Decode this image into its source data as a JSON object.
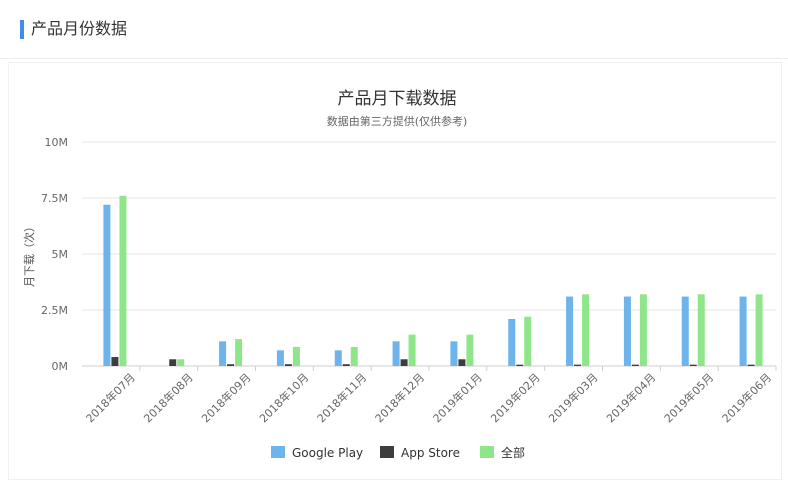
{
  "section": {
    "title": "产品月份数据"
  },
  "colors": {
    "accent": "#3d8eea",
    "google_play": "#6eb3ea",
    "app_store": "#3d3d3f",
    "all": "#8fe68a",
    "grid": "#e6e6e6"
  },
  "chart_data": {
    "type": "bar",
    "title": "产品月下载数据",
    "subtitle": "数据由第三方提供(仅供参考)",
    "xlabel": "",
    "ylabel": "月下载（次）",
    "ylim": [
      0,
      10000000
    ],
    "yticks": [
      {
        "value": 0,
        "label": "0M"
      },
      {
        "value": 2500000,
        "label": "2.5M"
      },
      {
        "value": 5000000,
        "label": "5M"
      },
      {
        "value": 7500000,
        "label": "7.5M"
      },
      {
        "value": 10000000,
        "label": "10M"
      }
    ],
    "categories": [
      "2018年07月",
      "2018年08月",
      "2018年09月",
      "2018年10月",
      "2018年11月",
      "2018年12月",
      "2019年01月",
      "2019年02月",
      "2019年03月",
      "2019年04月",
      "2019年05月",
      "2019年06月"
    ],
    "series": [
      {
        "name": "Google Play",
        "color": "#6eb3ea",
        "values": [
          7200000,
          0,
          1100000,
          700000,
          700000,
          1100000,
          1100000,
          2100000,
          3100000,
          3100000,
          3100000,
          3100000
        ]
      },
      {
        "name": "App Store",
        "color": "#3d3d3f",
        "values": [
          400000,
          300000,
          80000,
          80000,
          80000,
          300000,
          300000,
          60000,
          60000,
          60000,
          60000,
          60000
        ]
      },
      {
        "name": "全部",
        "color": "#8fe68a",
        "values": [
          7600000,
          300000,
          1200000,
          850000,
          850000,
          1400000,
          1400000,
          2200000,
          3200000,
          3200000,
          3200000,
          3200000
        ]
      }
    ],
    "grid": true,
    "legend_position": "bottom-center"
  }
}
